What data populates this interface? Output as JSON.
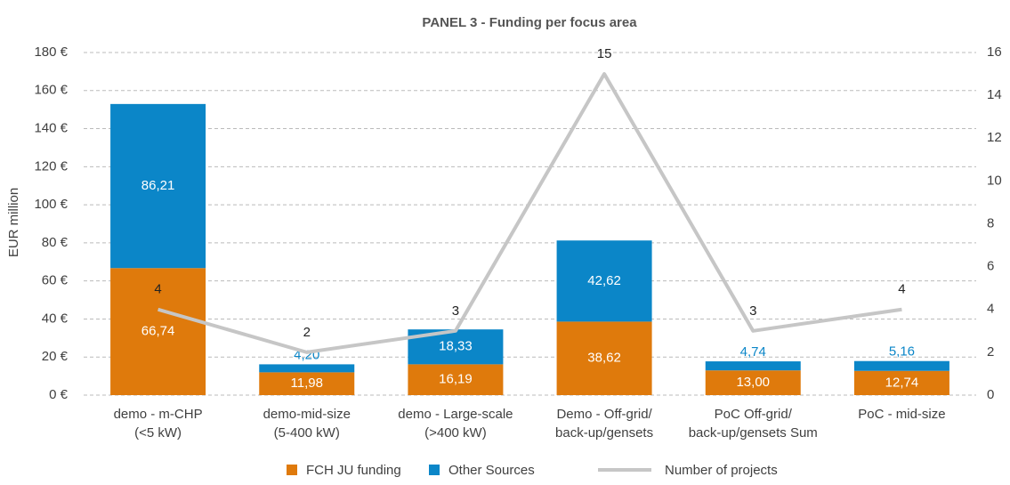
{
  "chart_data": {
    "type": "bar",
    "stacked": true,
    "title": "PANEL 3 - Funding per focus area",
    "y_label": "EUR million",
    "categories": [
      [
        "demo - m-CHP",
        "(<5 kW)"
      ],
      [
        "demo-mid-size",
        "(5-400 kW)"
      ],
      [
        "demo - Large-scale",
        "(>400 kW)"
      ],
      [
        "Demo - Off-grid/",
        "back-up/gensets"
      ],
      [
        "PoC Off-grid/",
        "back-up/gensets Sum"
      ],
      [
        "PoC - mid-size"
      ]
    ],
    "series": [
      {
        "name": "FCH JU funding",
        "color": "#df7a0c",
        "values": [
          66.74,
          11.98,
          16.19,
          38.62,
          13.0,
          12.74
        ],
        "value_labels": [
          "66,74",
          "11,98",
          "16,19",
          "38,62",
          "13,00",
          "12,74"
        ]
      },
      {
        "name": "Other Sources",
        "color": "#0b86c8",
        "values": [
          86.21,
          4.2,
          18.33,
          42.62,
          4.74,
          5.16
        ],
        "value_labels": [
          "86,21",
          "4,20",
          "18,33",
          "42,62",
          "4,74",
          "5,16"
        ]
      },
      {
        "name": "Number of projects",
        "type": "line",
        "axis": "y2",
        "color": "#c6c6c6",
        "values": [
          4,
          2,
          3,
          15,
          3,
          4
        ]
      }
    ],
    "ylim": [
      0,
      180
    ],
    "yticks": [
      {
        "value": 0,
        "label": "0 €"
      },
      {
        "value": 20,
        "label": "20 €"
      },
      {
        "value": 40,
        "label": "40 €"
      },
      {
        "value": 60,
        "label": "60 €"
      },
      {
        "value": 80,
        "label": "80 €"
      },
      {
        "value": 100,
        "label": "100 €"
      },
      {
        "value": 120,
        "label": "120 €"
      },
      {
        "value": 140,
        "label": "140 €"
      },
      {
        "value": 160,
        "label": "160 €"
      },
      {
        "value": 180,
        "label": "180 €"
      }
    ],
    "y2lim": [
      0,
      16
    ],
    "y2ticks": [
      0,
      2,
      4,
      6,
      8,
      10,
      12,
      14,
      16
    ],
    "grid": true,
    "legend": "bottom"
  }
}
